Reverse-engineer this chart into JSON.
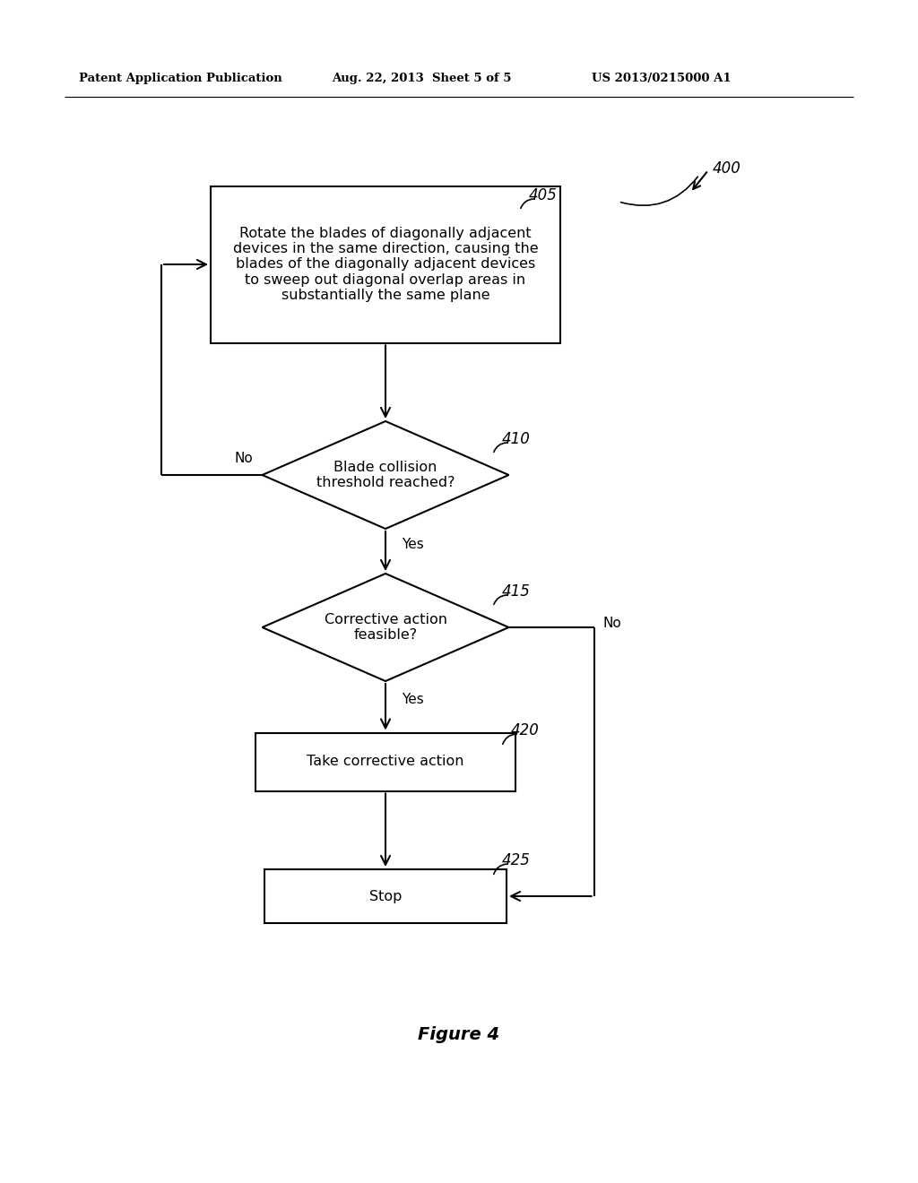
{
  "bg_color": "#ffffff",
  "header_left": "Patent Application Publication",
  "header_mid": "Aug. 22, 2013  Sheet 5 of 5",
  "header_right": "US 2013/0215000 A1",
  "figure_label": "Figure 4",
  "flow_label_400": "400",
  "flow_label_405": "405",
  "flow_label_410": "410",
  "flow_label_415": "415",
  "flow_label_420": "420",
  "flow_label_425": "425",
  "box405_text": "Rotate the blades of diagonally adjacent\ndevices in the same direction, causing the\nblades of the diagonally adjacent devices\nto sweep out diagonal overlap areas in\nsubstantially the same plane",
  "diamond410_text": "Blade collision\nthreshold reached?",
  "diamond415_text": "Corrective action\nfeasible?",
  "box420_text": "Take corrective action",
  "box425_text": "Stop",
  "no_label_410": "No",
  "no_label_415": "No",
  "yes_label_410": "Yes",
  "yes_label_415": "Yes"
}
